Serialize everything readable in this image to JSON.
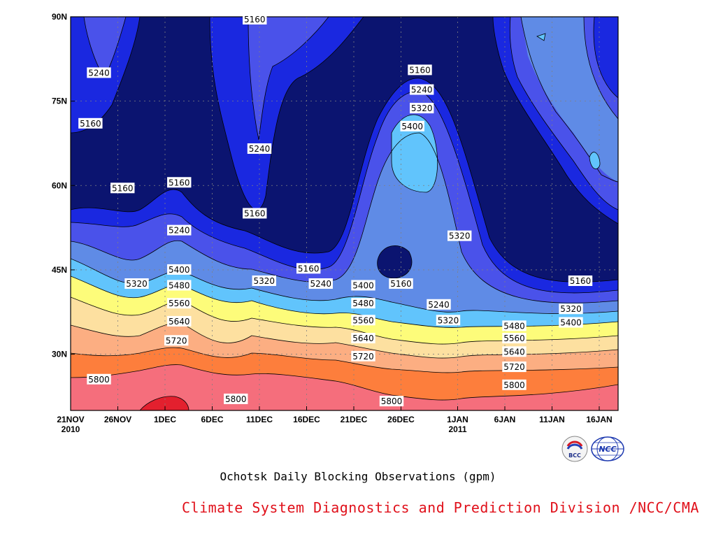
{
  "chart_data": {
    "type": "contour",
    "title": "Ochotsk Daily Blocking Observations (gpm)",
    "x_ticks": [
      {
        "label": "21NOV",
        "sub": "2010",
        "day": 0
      },
      {
        "label": "26NOV",
        "sub": "",
        "day": 5
      },
      {
        "label": "1DEC",
        "sub": "",
        "day": 10
      },
      {
        "label": "6DEC",
        "sub": "",
        "day": 15
      },
      {
        "label": "11DEC",
        "sub": "",
        "day": 20
      },
      {
        "label": "16DEC",
        "sub": "",
        "day": 25
      },
      {
        "label": "21DEC",
        "sub": "",
        "day": 30
      },
      {
        "label": "26DEC",
        "sub": "",
        "day": 35
      },
      {
        "label": "1JAN",
        "sub": "2011",
        "day": 41
      },
      {
        "label": "6JAN",
        "sub": "",
        "day": 46
      },
      {
        "label": "11JAN",
        "sub": "",
        "day": 51
      },
      {
        "label": "16JAN",
        "sub": "",
        "day": 56
      }
    ],
    "y_ticks": [
      {
        "label": "90N",
        "lat": 90
      },
      {
        "label": "75N",
        "lat": 75
      },
      {
        "label": "60N",
        "lat": 60
      },
      {
        "label": "45N",
        "lat": 45
      },
      {
        "label": "30N",
        "lat": 30
      }
    ],
    "xlim": [
      0,
      58
    ],
    "ylim": [
      20,
      90
    ],
    "levels": [
      5160,
      5240,
      5320,
      5400,
      5480,
      5560,
      5640,
      5720,
      5800
    ],
    "colors": [
      "#0b1470",
      "#1a28e0",
      "#4a52ea",
      "#5f8be6",
      "#61c4fc",
      "#fdfc7a",
      "#fde0a0",
      "#fcae82",
      "#fd7e3c",
      "#f56e7c",
      "#e3202e"
    ],
    "contour_labels": [
      {
        "value": "5240",
        "day": 3.0,
        "lat": 80.0
      },
      {
        "value": "5160",
        "day": 2.1,
        "lat": 71.0
      },
      {
        "value": "5160",
        "day": 5.5,
        "lat": 59.5
      },
      {
        "value": "5160",
        "day": 11.5,
        "lat": 60.5
      },
      {
        "value": "5240",
        "day": 11.5,
        "lat": 52.0
      },
      {
        "value": "5160",
        "day": 19.5,
        "lat": 89.5
      },
      {
        "value": "5240",
        "day": 20.0,
        "lat": 66.5
      },
      {
        "value": "5160",
        "day": 19.5,
        "lat": 55.0
      },
      {
        "value": "5160",
        "day": 25.2,
        "lat": 45.2
      },
      {
        "value": "5320",
        "day": 7.0,
        "lat": 42.5
      },
      {
        "value": "5400",
        "day": 11.5,
        "lat": 45.0
      },
      {
        "value": "5480",
        "day": 11.5,
        "lat": 42.2
      },
      {
        "value": "5560",
        "day": 11.5,
        "lat": 39.0
      },
      {
        "value": "5640",
        "day": 11.5,
        "lat": 35.8
      },
      {
        "value": "5720",
        "day": 11.2,
        "lat": 32.4
      },
      {
        "value": "5800",
        "day": 3.0,
        "lat": 25.5
      },
      {
        "value": "5800",
        "day": 17.5,
        "lat": 22.0
      },
      {
        "value": "5320",
        "day": 20.5,
        "lat": 43.0
      },
      {
        "value": "5240",
        "day": 26.5,
        "lat": 42.5
      },
      {
        "value": "5400",
        "day": 31.0,
        "lat": 42.2
      },
      {
        "value": "5480",
        "day": 31.0,
        "lat": 39.0
      },
      {
        "value": "5560",
        "day": 31.0,
        "lat": 36.0
      },
      {
        "value": "5640",
        "day": 31.0,
        "lat": 32.8
      },
      {
        "value": "5720",
        "day": 31.0,
        "lat": 29.6
      },
      {
        "value": "5800",
        "day": 34.0,
        "lat": 21.6
      },
      {
        "value": "5160",
        "day": 37.0,
        "lat": 80.5
      },
      {
        "value": "5240",
        "day": 37.2,
        "lat": 77.0
      },
      {
        "value": "5320",
        "day": 37.2,
        "lat": 73.7
      },
      {
        "value": "5400",
        "day": 36.2,
        "lat": 70.5
      },
      {
        "value": "5320",
        "day": 41.2,
        "lat": 51.0
      },
      {
        "value": "5160",
        "day": 35.0,
        "lat": 42.5
      },
      {
        "value": "5240",
        "day": 39.0,
        "lat": 38.8
      },
      {
        "value": "5320",
        "day": 40.0,
        "lat": 36.0
      },
      {
        "value": "5480",
        "day": 47.0,
        "lat": 35.0
      },
      {
        "value": "5560",
        "day": 47.0,
        "lat": 32.8
      },
      {
        "value": "5640",
        "day": 47.0,
        "lat": 30.4
      },
      {
        "value": "5720",
        "day": 47.0,
        "lat": 27.7
      },
      {
        "value": "5800",
        "day": 47.0,
        "lat": 24.5
      },
      {
        "value": "5160",
        "day": 54.0,
        "lat": 43.0
      },
      {
        "value": "5320",
        "day": 53.0,
        "lat": 38.0
      },
      {
        "value": "5400",
        "day": 53.0,
        "lat": 35.6
      }
    ]
  },
  "footer": {
    "title": "Ochotsk Daily Blocking Observations (gpm)",
    "division": "Climate System Diagnostics and Prediction Division /NCC/CMA",
    "logo_bcc": "BCC",
    "logo_ncc": "NCC"
  }
}
